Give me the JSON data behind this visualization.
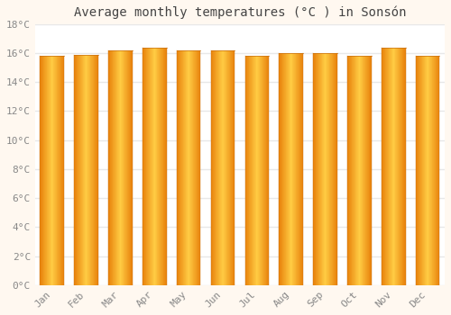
{
  "title": "Average monthly temperatures (°C ) in Sonsón",
  "months": [
    "Jan",
    "Feb",
    "Mar",
    "Apr",
    "May",
    "Jun",
    "Jul",
    "Aug",
    "Sep",
    "Oct",
    "Nov",
    "Dec"
  ],
  "values": [
    15.8,
    15.9,
    16.2,
    16.4,
    16.2,
    16.2,
    15.8,
    16.0,
    16.0,
    15.8,
    16.4,
    15.8
  ],
  "ylim": [
    0,
    18
  ],
  "yticks": [
    0,
    2,
    4,
    6,
    8,
    10,
    12,
    14,
    16,
    18
  ],
  "ytick_labels": [
    "0°C",
    "2°C",
    "4°C",
    "6°C",
    "8°C",
    "10°C",
    "12°C",
    "14°C",
    "16°C",
    "18°C"
  ],
  "bar_color_left": "#E8820C",
  "bar_color_mid": "#FFCC44",
  "bar_color_right": "#E8820C",
  "background_color": "#FFFFFF",
  "fig_background_color": "#FFF8F0",
  "grid_color": "#E8E8E8",
  "title_color": "#444444",
  "tick_color": "#888888",
  "title_fontsize": 10,
  "tick_fontsize": 8,
  "bar_width": 0.7
}
